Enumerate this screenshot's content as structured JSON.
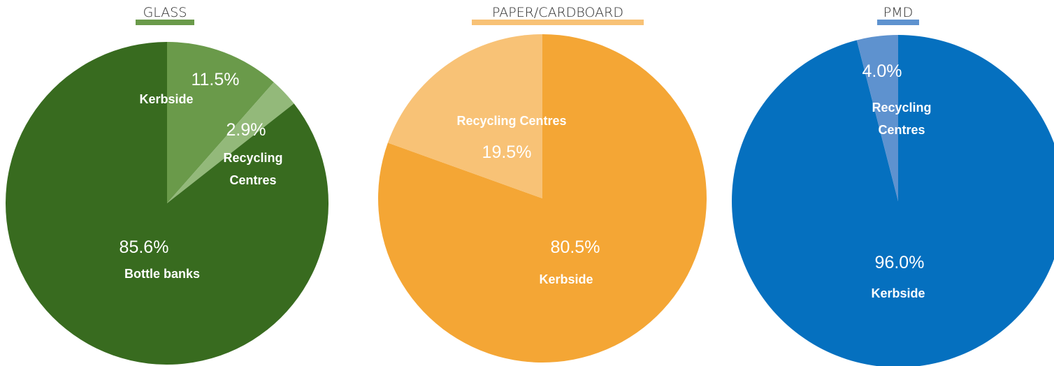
{
  "chart_data": [
    {
      "type": "pie",
      "title": "GLASS",
      "accent_color": "#6a9a4a",
      "slices": [
        {
          "label_lines": [
            "Kerbside"
          ],
          "value_label": "11.5%",
          "value": 11.5,
          "color": "#6a9a4a"
        },
        {
          "label_lines": [
            "Recycling",
            "Centres"
          ],
          "value_label": "2.9%",
          "value": 2.9,
          "color": "#93b97a"
        },
        {
          "label_lines": [
            "Bottle banks"
          ],
          "value_label": "85.6%",
          "value": 85.6,
          "color": "#386b1f"
        }
      ]
    },
    {
      "type": "pie",
      "title": "PAPER/CARDBOARD",
      "accent_color": "#f8c276",
      "slices": [
        {
          "label_lines": [
            "Kerbside"
          ],
          "value_label": "80.5%",
          "value": 80.5,
          "color": "#f4a635"
        },
        {
          "label_lines": [
            "Recycling Centres"
          ],
          "value_label": "19.5%",
          "value": 19.5,
          "color": "#f8c276"
        }
      ]
    },
    {
      "type": "pie",
      "title": "PMD",
      "accent_color": "#5e92cf",
      "slices": [
        {
          "label_lines": [
            "Kerbside"
          ],
          "value_label": "96.0%",
          "value": 96.0,
          "color": "#0570bf"
        },
        {
          "label_lines": [
            "Recycling",
            "Centres"
          ],
          "value_label": "4.0%",
          "value": 4.0,
          "color": "#5e92cf"
        }
      ]
    }
  ]
}
